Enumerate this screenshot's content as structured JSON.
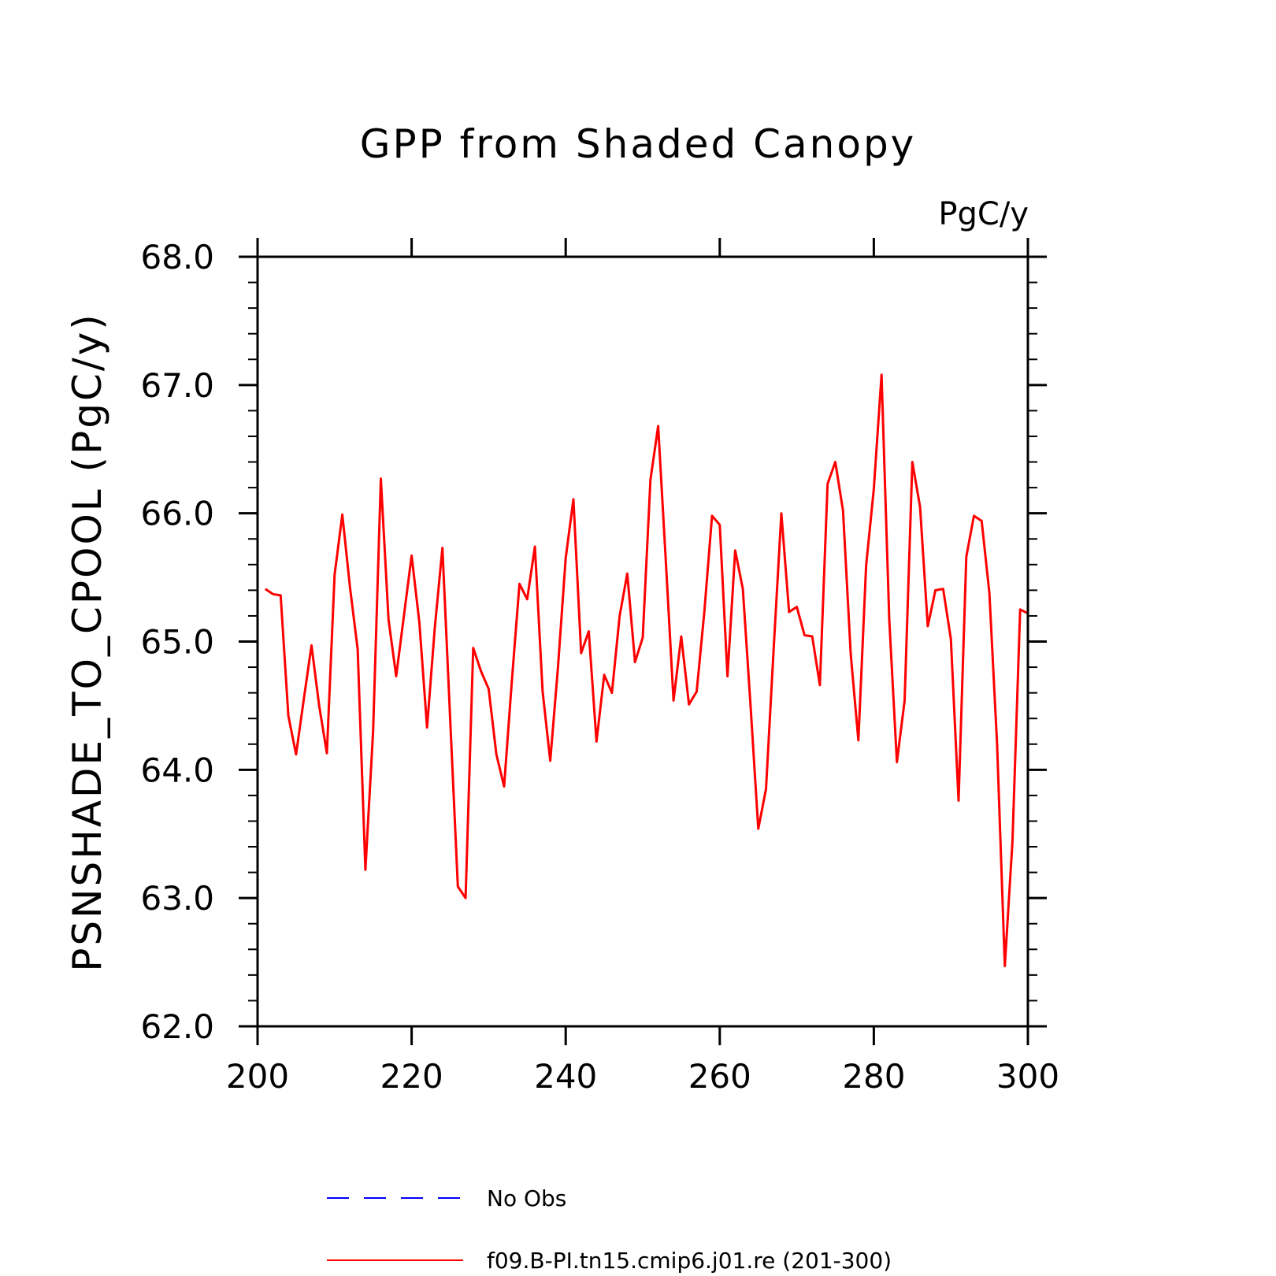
{
  "chart_data": {
    "type": "line",
    "title": "GPP from Shaded Canopy",
    "units": "PgC/y",
    "xlabel": "",
    "ylabel": "PSNSHADE_TO_CPOOL  (PgC/y)",
    "xlim": [
      200,
      300
    ],
    "ylim": [
      62.0,
      68.0
    ],
    "xticks": [
      200,
      220,
      240,
      260,
      280,
      300
    ],
    "xtick_labels": [
      "200",
      "220",
      "240",
      "260",
      "280",
      "300"
    ],
    "yticks": [
      62.0,
      63.0,
      64.0,
      65.0,
      66.0,
      67.0,
      68.0
    ],
    "ytick_labels": [
      "62.0",
      "63.0",
      "64.0",
      "65.0",
      "66.0",
      "67.0",
      "68.0"
    ],
    "grid": false,
    "legend_position": "bottom",
    "series": [
      {
        "name": "No Obs",
        "color": "#0000ff",
        "dash": "dashed",
        "x": [],
        "y": []
      },
      {
        "name": "f09.B-PI.tn15.cmip6.j01.re (201-300)",
        "color": "#ff0000",
        "dash": "solid",
        "x": [
          201,
          202,
          203,
          204,
          205,
          206,
          207,
          208,
          209,
          210,
          211,
          212,
          213,
          214,
          215,
          216,
          217,
          218,
          219,
          220,
          221,
          222,
          223,
          224,
          225,
          226,
          227,
          228,
          229,
          230,
          231,
          232,
          233,
          234,
          235,
          236,
          237,
          238,
          239,
          240,
          241,
          242,
          243,
          244,
          245,
          246,
          247,
          248,
          249,
          250,
          251,
          252,
          253,
          254,
          255,
          256,
          257,
          258,
          259,
          260,
          261,
          262,
          263,
          264,
          265,
          266,
          267,
          268,
          269,
          270,
          271,
          272,
          273,
          274,
          275,
          276,
          277,
          278,
          279,
          280,
          281,
          282,
          283,
          284,
          285,
          286,
          287,
          288,
          289,
          290,
          291,
          292,
          293,
          294,
          295,
          296,
          297,
          298,
          299,
          300
        ],
        "y": [
          65.41,
          65.37,
          65.36,
          64.42,
          64.12,
          64.55,
          64.97,
          64.5,
          64.13,
          65.52,
          65.99,
          65.42,
          64.94,
          63.22,
          64.3,
          66.27,
          65.17,
          64.73,
          65.2,
          65.67,
          65.15,
          64.33,
          65.1,
          65.73,
          64.4,
          63.09,
          63.0,
          64.95,
          64.77,
          64.63,
          64.12,
          63.87,
          64.68,
          65.45,
          65.33,
          65.74,
          64.61,
          64.07,
          64.8,
          65.65,
          66.11,
          64.91,
          65.08,
          64.22,
          64.74,
          64.6,
          65.2,
          65.53,
          64.84,
          65.03,
          66.26,
          66.68,
          65.63,
          64.54,
          65.04,
          64.51,
          64.61,
          65.23,
          65.98,
          65.91,
          64.73,
          65.71,
          65.41,
          64.5,
          63.54,
          63.85,
          64.95,
          66.0,
          65.23,
          65.27,
          65.05,
          65.04,
          64.66,
          66.23,
          66.4,
          66.02,
          64.9,
          64.23,
          65.59,
          66.19,
          67.08,
          65.17,
          64.06,
          64.54,
          66.4,
          66.05,
          65.12,
          65.4,
          65.41,
          65.02,
          63.76,
          65.66,
          65.98,
          65.94,
          65.38,
          64.2,
          62.47,
          63.44,
          65.25,
          65.22
        ]
      }
    ]
  }
}
